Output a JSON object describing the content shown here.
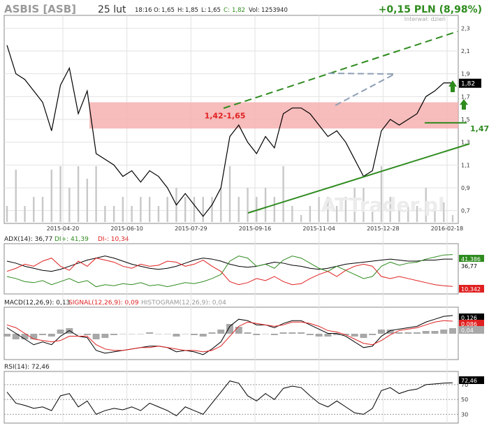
{
  "header": {
    "ticker": "ASBIS [ASB]",
    "date": "25 lut",
    "time": "18:16",
    "open_label": "O:",
    "open": "1,65",
    "high_label": "H:",
    "high": "1,85",
    "low_label": "L:",
    "low": "1,65",
    "close_label": "C:",
    "close": "1,82",
    "vol_label": "Vol:",
    "volume": "1253940",
    "change": "+0,15 PLN (8,98%)",
    "interval": "Interwał: dzień"
  },
  "watermark": "ATTrader.pl",
  "colors": {
    "price_line": "#000000",
    "up_green": "#2e8b1e",
    "red": "#e02020",
    "zone_fill": "#f6b0b0",
    "support_line": "#2e8b1e",
    "resistance_dash": "#2e8b1e",
    "triangle": "#8e9fb5",
    "grid": "#e2e2e2",
    "volume": "#c8c8c8",
    "histogram": "#a8a8a8"
  },
  "chart_data": [
    {
      "type": "line",
      "panel": "price",
      "x_ticks": [
        "2015-04-20",
        "2015-06-10",
        "2015-07-29",
        "2015-09-16",
        "2015-11-04",
        "2015-12-28",
        "2016-02-18"
      ],
      "y_ticks": [
        "2,3",
        "2,1",
        "1,9",
        "1,7",
        "1,5",
        "1,3",
        "1,1",
        "0,9",
        "0,7"
      ],
      "ylim": [
        0.6,
        2.4
      ],
      "current_price": "1,82",
      "support_level": "1,47",
      "zone_label": "1,42-1,65",
      "zone": [
        1.42,
        1.65
      ],
      "series": [
        {
          "name": "close",
          "x": [
            0,
            5,
            10,
            15,
            20,
            25,
            30,
            35,
            40,
            45,
            50,
            55,
            60,
            65,
            70,
            75,
            80,
            85,
            90,
            95,
            100,
            105,
            110,
            115,
            120,
            125,
            130,
            135,
            140,
            145,
            150,
            155,
            160,
            165,
            170,
            175,
            180,
            185,
            190,
            195,
            200,
            205,
            210,
            215,
            220,
            225,
            230,
            235,
            240,
            245,
            250
          ],
          "values": [
            2.15,
            1.9,
            1.85,
            1.75,
            1.65,
            1.4,
            1.8,
            1.95,
            1.55,
            1.75,
            1.2,
            1.15,
            1.1,
            1.0,
            1.05,
            0.95,
            1.05,
            1.0,
            0.9,
            0.75,
            0.85,
            0.75,
            0.65,
            0.75,
            0.9,
            1.35,
            1.45,
            1.3,
            1.2,
            1.35,
            1.25,
            1.55,
            1.6,
            1.6,
            1.55,
            1.45,
            1.35,
            1.4,
            1.3,
            1.15,
            1.0,
            1.05,
            1.4,
            1.5,
            1.45,
            1.5,
            1.55,
            1.7,
            1.75,
            1.82,
            1.82
          ]
        }
      ]
    },
    {
      "type": "line",
      "panel": "adx",
      "title": "ADX(14): 36,77",
      "series": [
        {
          "name": "ADX(14)",
          "value": "36,77",
          "values": [
            35,
            33,
            30,
            28,
            26,
            25,
            27,
            30,
            33,
            36,
            38,
            40,
            38,
            35,
            32,
            30,
            28,
            27,
            28,
            30,
            33,
            36,
            38,
            37,
            35,
            32,
            30,
            29,
            30,
            32,
            34,
            33,
            31,
            30,
            28,
            27,
            28,
            30,
            32,
            33,
            34,
            35,
            36,
            37,
            36,
            35,
            35,
            36,
            36,
            37,
            37
          ]
        },
        {
          "name": "DI+",
          "value": "41,39",
          "values": [
            20,
            18,
            15,
            14,
            16,
            12,
            15,
            18,
            14,
            16,
            10,
            12,
            11,
            13,
            12,
            14,
            11,
            12,
            10,
            12,
            14,
            13,
            15,
            18,
            22,
            35,
            40,
            38,
            30,
            32,
            28,
            36,
            40,
            38,
            33,
            28,
            25,
            30,
            26,
            22,
            18,
            20,
            30,
            34,
            31,
            33,
            34,
            37,
            39,
            41,
            41.4
          ]
        },
        {
          "name": "DI-",
          "value": "10,34",
          "values": [
            25,
            28,
            32,
            30,
            35,
            38,
            30,
            26,
            35,
            30,
            38,
            36,
            34,
            30,
            28,
            32,
            30,
            31,
            35,
            34,
            30,
            32,
            36,
            30,
            25,
            15,
            12,
            14,
            18,
            16,
            20,
            15,
            12,
            13,
            18,
            22,
            25,
            20,
            26,
            30,
            32,
            30,
            20,
            18,
            20,
            18,
            16,
            14,
            12,
            11,
            10.3
          ]
        }
      ],
      "value_tags": [
        "41,386",
        "36,77",
        "10,342"
      ]
    },
    {
      "type": "line",
      "panel": "macd",
      "title": "MACD(12,26,9): 0,13",
      "series": [
        {
          "name": "MACD(12,26,9)",
          "value": "0,13",
          "values": [
            0.04,
            0.0,
            -0.04,
            -0.08,
            -0.06,
            -0.08,
            -0.02,
            0.02,
            -0.02,
            -0.03,
            -0.12,
            -0.14,
            -0.13,
            -0.12,
            -0.11,
            -0.1,
            -0.09,
            -0.09,
            -0.1,
            -0.13,
            -0.12,
            -0.13,
            -0.15,
            -0.11,
            -0.06,
            0.05,
            0.1,
            0.09,
            0.06,
            0.06,
            0.04,
            0.07,
            0.09,
            0.09,
            0.06,
            0.03,
            0.0,
            0.0,
            -0.02,
            -0.06,
            -0.1,
            -0.09,
            -0.02,
            0.02,
            0.03,
            0.04,
            0.05,
            0.08,
            0.1,
            0.12,
            0.126
          ]
        },
        {
          "name": "SIGNAL(12,26,9)",
          "value": "0,09",
          "values": [
            0.06,
            0.04,
            0.0,
            -0.04,
            -0.05,
            -0.06,
            -0.05,
            -0.02,
            -0.02,
            -0.02,
            -0.08,
            -0.11,
            -0.12,
            -0.12,
            -0.11,
            -0.1,
            -0.1,
            -0.09,
            -0.1,
            -0.11,
            -0.12,
            -0.12,
            -0.13,
            -0.12,
            -0.09,
            -0.02,
            0.05,
            0.08,
            0.07,
            0.06,
            0.05,
            0.06,
            0.08,
            0.08,
            0.07,
            0.05,
            0.02,
            0.01,
            -0.01,
            -0.04,
            -0.07,
            -0.08,
            -0.05,
            -0.01,
            0.02,
            0.03,
            0.04,
            0.06,
            0.08,
            0.09,
            0.086
          ]
        },
        {
          "name": "HISTOGRAM(12,26,9)",
          "value": "0,04",
          "values": [
            -0.02,
            -0.04,
            -0.04,
            -0.04,
            -0.01,
            -0.02,
            0.03,
            0.04,
            0.0,
            -0.01,
            -0.04,
            -0.03,
            -0.01,
            0.0,
            0.0,
            0.0,
            0.01,
            0.0,
            0.0,
            -0.02,
            0.0,
            -0.01,
            -0.02,
            0.01,
            0.03,
            0.07,
            0.05,
            0.01,
            -0.01,
            0.0,
            -0.01,
            0.01,
            0.01,
            0.01,
            -0.01,
            -0.02,
            -0.02,
            -0.01,
            -0.01,
            -0.02,
            -0.03,
            -0.01,
            0.03,
            0.03,
            0.01,
            0.01,
            0.01,
            0.02,
            0.02,
            0.03,
            0.04
          ]
        }
      ],
      "value_tags": [
        "0,126",
        "0,086",
        "0,04"
      ]
    },
    {
      "type": "line",
      "panel": "rsi",
      "title": "RSI(14): 72,46",
      "y_ticks": [
        "70",
        "50",
        "30"
      ],
      "ylim": [
        20,
        85
      ],
      "series": [
        {
          "name": "RSI(14)",
          "value": "72,46",
          "values": [
            60,
            45,
            42,
            38,
            40,
            35,
            55,
            58,
            40,
            48,
            30,
            35,
            38,
            36,
            40,
            35,
            45,
            40,
            35,
            28,
            40,
            35,
            30,
            45,
            60,
            75,
            72,
            55,
            48,
            58,
            50,
            65,
            68,
            66,
            55,
            45,
            40,
            48,
            40,
            32,
            30,
            38,
            62,
            66,
            58,
            62,
            64,
            70,
            71,
            72,
            72.46
          ]
        }
      ],
      "value_tags": [
        "72,46"
      ]
    }
  ]
}
